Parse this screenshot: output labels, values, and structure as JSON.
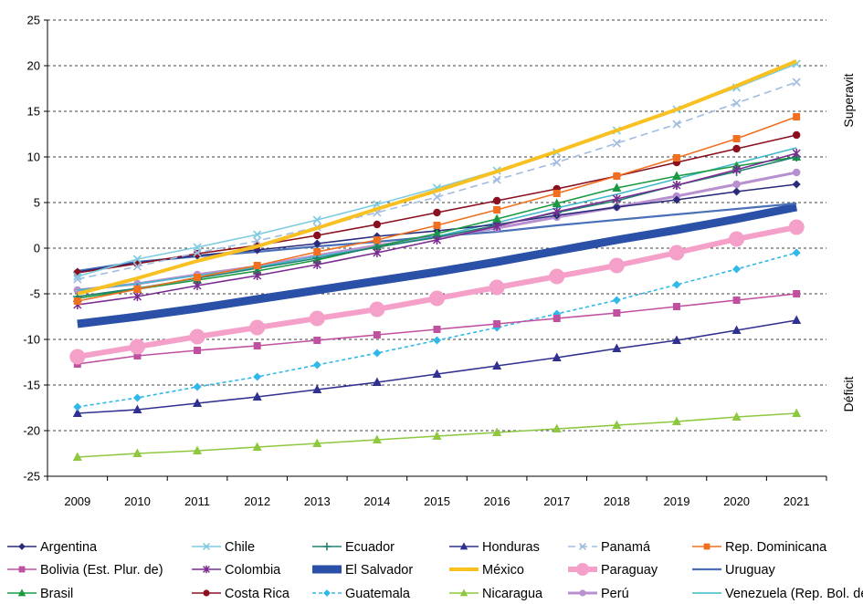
{
  "chart_data": {
    "type": "line",
    "title": "",
    "xlabel": "",
    "ylabel": "",
    "x": [
      "2009",
      "2010",
      "2011",
      "2012",
      "2013",
      "2014",
      "2015",
      "2016",
      "2017",
      "2018",
      "2019",
      "2020",
      "2021"
    ],
    "ylim": [
      -25,
      25
    ],
    "yticks": [
      25,
      20,
      15,
      10,
      5,
      0,
      -5,
      -10,
      -15,
      -20,
      -25
    ],
    "grid": "horizontal dashed",
    "legend_position": "bottom",
    "side_labels": {
      "upper": "Superavit",
      "lower": "Déficit"
    },
    "series": [
      {
        "name": "Argentina",
        "color": "#2a2a7a",
        "marker": "diamond",
        "values": [
          -2.6,
          -1.6,
          -0.8,
          -0.2,
          0.5,
          1.3,
          1.9,
          2.6,
          3.6,
          4.5,
          5.3,
          6.2,
          7.0
        ]
      },
      {
        "name": "Bolivia (Est. Plur. de)",
        "color": "#c050a0",
        "marker": "square",
        "values": [
          -12.7,
          -11.8,
          -11.2,
          -10.7,
          -10.1,
          -9.5,
          -8.9,
          -8.3,
          -7.7,
          -7.1,
          -6.4,
          -5.7,
          -5.0
        ]
      },
      {
        "name": "Brasil",
        "color": "#1a9a40",
        "marker": "triangle",
        "values": [
          -5.5,
          -4.5,
          -3.5,
          -2.5,
          -1.3,
          0.2,
          1.6,
          3.2,
          4.9,
          6.6,
          7.9,
          9.0,
          10.0
        ]
      },
      {
        "name": "Chile",
        "color": "#7ecbe0",
        "marker": "x",
        "values": [
          -3.1,
          -1.2,
          0.1,
          1.5,
          3.1,
          4.8,
          6.6,
          8.5,
          10.5,
          12.9,
          15.2,
          17.6,
          20.2
        ]
      },
      {
        "name": "Colombia",
        "color": "#7a2a90",
        "marker": "star",
        "values": [
          -6.2,
          -5.3,
          -4.1,
          -3.0,
          -1.8,
          -0.5,
          0.9,
          2.4,
          4.0,
          5.4,
          6.9,
          8.6,
          10.4
        ]
      },
      {
        "name": "Costa Rica",
        "color": "#8a1020",
        "marker": "circle",
        "values": [
          -2.7,
          -1.7,
          -0.6,
          0.3,
          1.4,
          2.6,
          3.9,
          5.2,
          6.5,
          7.9,
          9.4,
          10.9,
          12.4
        ]
      },
      {
        "name": "Ecuador",
        "color": "#208070",
        "marker": "plus",
        "values": [
          -5.3,
          -4.4,
          -3.3,
          -2.2,
          -1.1,
          0.1,
          1.2,
          2.5,
          3.9,
          5.2,
          6.9,
          8.4,
          10.0
        ]
      },
      {
        "name": "El Salvador",
        "color": "#2a50a8",
        "marker": "none",
        "width": 9,
        "values": [
          -8.3,
          -7.5,
          -6.6,
          -5.6,
          -4.6,
          -3.6,
          -2.6,
          -1.5,
          -0.3,
          0.9,
          2.0,
          3.2,
          4.5
        ]
      },
      {
        "name": "Guatemala",
        "color": "#30b8e8",
        "marker": "diamond",
        "dash": "4,3",
        "values": [
          -17.4,
          -16.4,
          -15.2,
          -14.1,
          -12.8,
          -11.5,
          -10.1,
          -8.7,
          -7.2,
          -5.7,
          -4.0,
          -2.3,
          -0.5
        ]
      },
      {
        "name": "Honduras",
        "color": "#303090",
        "marker": "triangle",
        "values": [
          -18.1,
          -17.7,
          -17.0,
          -16.3,
          -15.5,
          -14.7,
          -13.8,
          -12.9,
          -12.0,
          -11.0,
          -10.1,
          -9.0,
          -7.9
        ]
      },
      {
        "name": "México",
        "color": "#f8c020",
        "marker": "none",
        "width": 4,
        "values": [
          -5.0,
          -3.3,
          -1.4,
          0.2,
          2.2,
          4.3,
          6.3,
          8.4,
          10.6,
          12.9,
          15.2,
          17.8,
          20.5
        ]
      },
      {
        "name": "Nicaragua",
        "color": "#8ec840",
        "marker": "triangle",
        "values": [
          -22.9,
          -22.5,
          -22.2,
          -21.8,
          -21.4,
          -21.0,
          -20.6,
          -20.2,
          -19.8,
          -19.4,
          -19.0,
          -18.5,
          -18.1
        ]
      },
      {
        "name": "Panamá",
        "color": "#a0bce0",
        "marker": "x",
        "dash": "8,5",
        "values": [
          -3.4,
          -2.0,
          -0.5,
          0.8,
          2.3,
          3.9,
          5.6,
          7.5,
          9.4,
          11.5,
          13.6,
          15.9,
          18.2
        ]
      },
      {
        "name": "Paraguay",
        "color": "#f4a0c8",
        "marker": "bigcircle",
        "width": 6,
        "values": [
          -11.9,
          -10.8,
          -9.7,
          -8.7,
          -7.7,
          -6.7,
          -5.5,
          -4.3,
          -3.1,
          -1.9,
          -0.5,
          1.0,
          2.3
        ]
      },
      {
        "name": "Perú",
        "color": "#b890d0",
        "marker": "circle",
        "width": 3,
        "values": [
          -4.6,
          -3.9,
          -2.9,
          -2.0,
          -0.8,
          0.3,
          1.2,
          2.2,
          3.4,
          4.5,
          5.7,
          7.0,
          8.3
        ]
      },
      {
        "name": "Rep. Dominicana",
        "color": "#f07020",
        "marker": "square",
        "values": [
          -5.8,
          -4.5,
          -3.2,
          -1.9,
          -0.4,
          0.9,
          2.5,
          4.2,
          6.0,
          7.9,
          9.9,
          12.0,
          14.4
        ]
      },
      {
        "name": "Uruguay",
        "color": "#4a70b8",
        "marker": "none",
        "width": 2.2,
        "values": [
          -2.5,
          -1.5,
          -0.9,
          -0.4,
          0.2,
          0.7,
          1.3,
          1.8,
          2.5,
          3.1,
          3.7,
          4.3,
          4.9
        ]
      },
      {
        "name": "Venezuela (Rep. Bol. de)",
        "color": "#40b8c8",
        "marker": "none",
        "values": [
          -4.6,
          -3.9,
          -3.0,
          -2.1,
          -0.9,
          0.1,
          1.3,
          2.8,
          4.4,
          5.9,
          7.6,
          9.3,
          11.0
        ]
      }
    ]
  }
}
